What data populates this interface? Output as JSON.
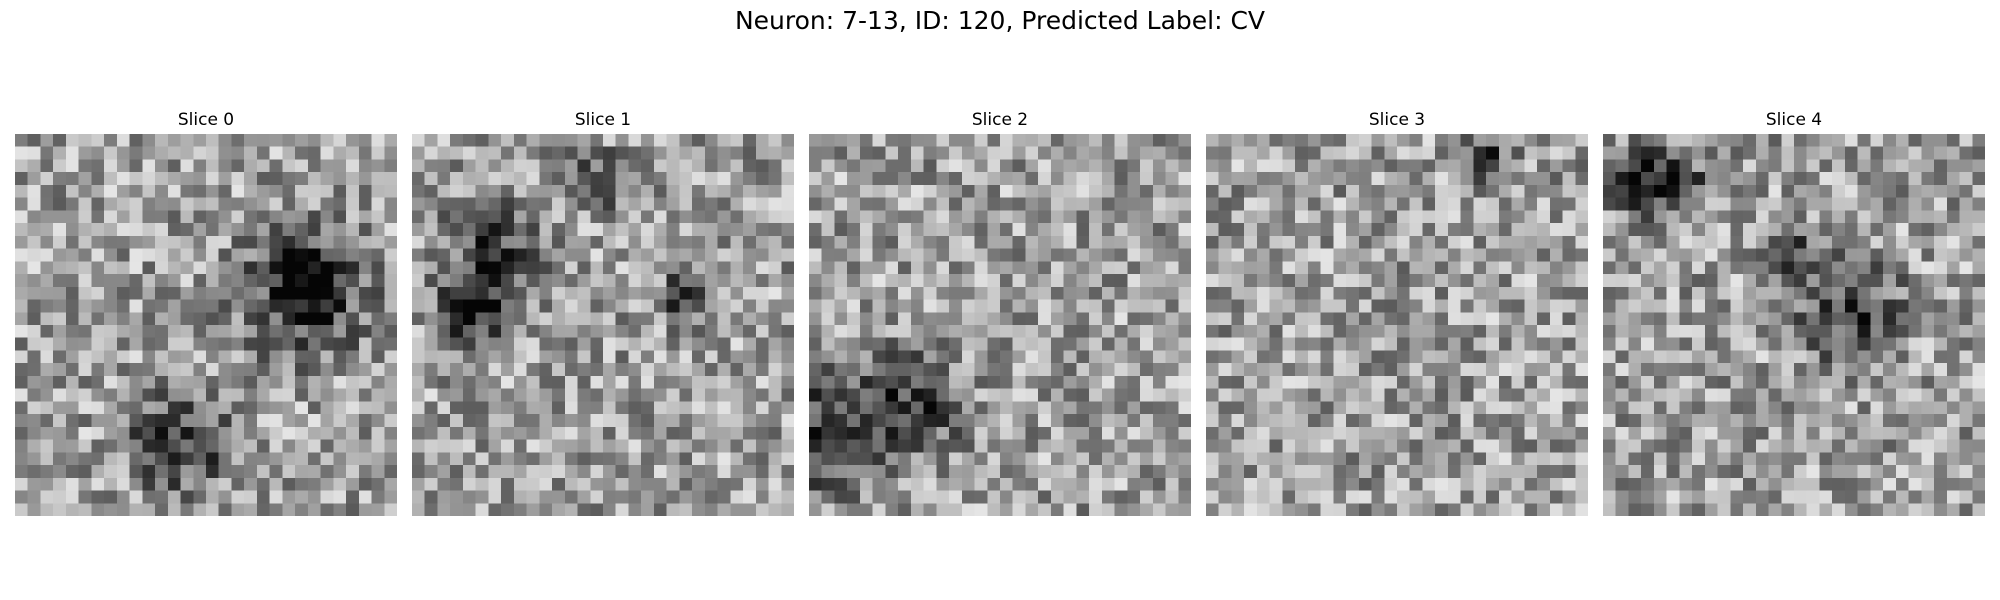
{
  "figure": {
    "title": "Neuron: 7-13, ID: 120, Predicted Label: CV"
  },
  "slices": [
    {
      "label": "Slice 0",
      "seed": 11,
      "dark_blobs": 3
    },
    {
      "label": "Slice 1",
      "seed": 23,
      "dark_blobs": 4
    },
    {
      "label": "Slice 2",
      "seed": 37,
      "dark_blobs": 2
    },
    {
      "label": "Slice 3",
      "seed": 41,
      "dark_blobs": 1
    },
    {
      "label": "Slice 4",
      "seed": 53,
      "dark_blobs": 4
    }
  ],
  "colormap": "gray"
}
